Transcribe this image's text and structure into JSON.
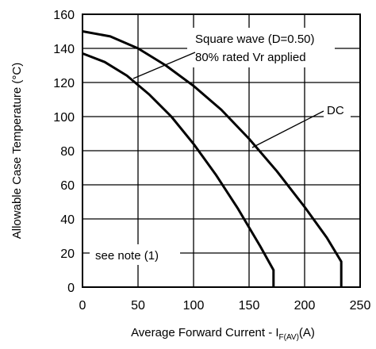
{
  "chart_data": {
    "type": "line",
    "xlabel": "Average Forward Current - I",
    "xlabel_sub": "F(AV)",
    "xlabel_unit": "(A)",
    "ylabel": "Allowable Case Temperature  (°C)",
    "xlim": [
      0,
      250
    ],
    "ylim": [
      0,
      160
    ],
    "x_ticks": [
      0,
      50,
      100,
      150,
      200,
      250
    ],
    "y_ticks": [
      0,
      20,
      40,
      60,
      80,
      100,
      120,
      140,
      160
    ],
    "grid": true,
    "series": [
      {
        "name": "Square wave (D=0.50) 80% rated Vr applied",
        "x": [
          0,
          20,
          40,
          60,
          80,
          100,
          120,
          140,
          160,
          172,
          172
        ],
        "y": [
          137,
          132,
          124,
          113,
          100,
          84,
          66,
          46,
          24,
          10,
          0
        ]
      },
      {
        "name": "DC",
        "x": [
          0,
          25,
          50,
          75,
          100,
          125,
          150,
          175,
          200,
          220,
          233,
          233
        ],
        "y": [
          150,
          147,
          140,
          130,
          118,
          104,
          87,
          68,
          47,
          29,
          15,
          0
        ]
      }
    ],
    "annotations": [
      {
        "label": "annotation-square-wave-line1",
        "text": "Square wave (D=0.50)"
      },
      {
        "label": "annotation-square-wave-line2",
        "text": "80% rated Vr applied"
      },
      {
        "label": "annotation-dc",
        "text": "DC"
      },
      {
        "label": "annotation-note",
        "text": "see note (1)"
      }
    ]
  }
}
